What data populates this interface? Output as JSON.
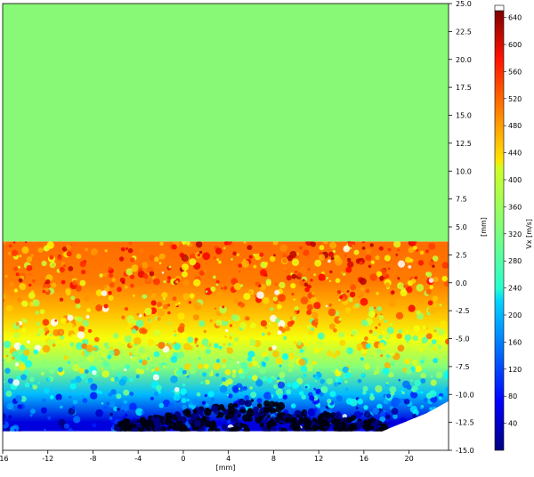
{
  "chart_data": {
    "type": "heatmap",
    "title": "",
    "xlabel": "[mm]",
    "ylabel": "[mm]",
    "x_ticks": [
      -16,
      -12,
      -8,
      -4,
      0,
      4,
      8,
      12,
      16,
      20
    ],
    "y_ticks": [
      25.0,
      22.5,
      20.0,
      17.5,
      15.0,
      12.5,
      10.0,
      7.5,
      5.0,
      2.5,
      0.0,
      -2.5,
      -5.0,
      -7.5,
      -10.0,
      -12.5,
      -15.0
    ],
    "x_tick_labels": [
      "-16",
      "-12",
      "-8",
      "-4",
      "0",
      "4",
      "8",
      "12",
      "16",
      "20"
    ],
    "y_tick_labels": [
      "25.0",
      "22.5",
      "20.0",
      "17.5",
      "15.0",
      "12.5",
      "10.0",
      "7.5",
      "5.0",
      "2.5",
      "0.0",
      "-2.5",
      "-5.0",
      "-7.5",
      "-10.0",
      "-12.5",
      "-15.0"
    ],
    "xlim": [
      -16,
      23.5
    ],
    "ylim": [
      -15.0,
      25.0
    ],
    "masked_region": {
      "x": [
        -16,
        23.5
      ],
      "y": [
        3.7,
        25.0
      ],
      "color": "#88f977"
    },
    "field_bounds": {
      "x": [
        -16,
        23.5
      ],
      "y": [
        -13.3,
        3.7
      ]
    },
    "colorbar": {
      "label": "Vx [m/s]",
      "range": [
        0,
        650
      ],
      "ticks": [
        40,
        80,
        120,
        160,
        200,
        240,
        280,
        320,
        360,
        400,
        440,
        480,
        520,
        560,
        600,
        640
      ],
      "tick_labels": [
        "40",
        "80",
        "120",
        "160",
        "200",
        "240",
        "280",
        "320",
        "360",
        "400",
        "440",
        "480",
        "520",
        "560",
        "600",
        "640"
      ],
      "colormap": "jet"
    },
    "field_trend": [
      {
        "y": 3.5,
        "vx": 500
      },
      {
        "y": 0.0,
        "vx": 490
      },
      {
        "y": -2.5,
        "vx": 450
      },
      {
        "y": -5.0,
        "vx": 400
      },
      {
        "y": -7.5,
        "vx": 330
      },
      {
        "y": -10.0,
        "vx": 200
      },
      {
        "y": -12.5,
        "vx": 60
      }
    ]
  }
}
